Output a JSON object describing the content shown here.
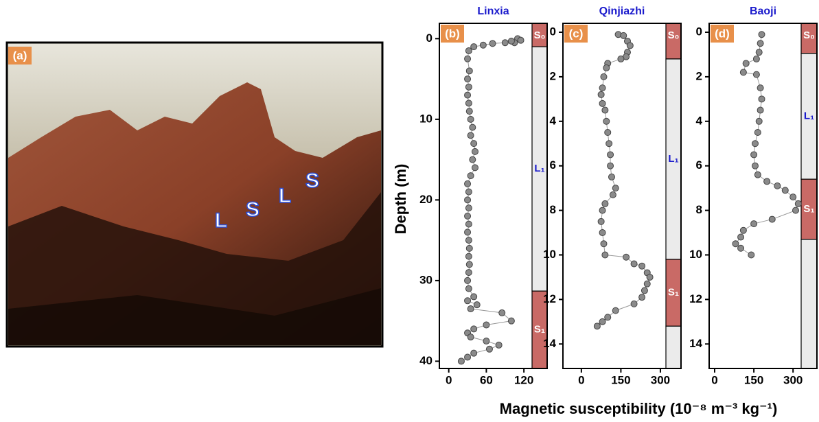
{
  "photo": {
    "label": "(a)",
    "annotations": [
      "L",
      "S",
      "L",
      "S"
    ]
  },
  "ylabel": "Depth (m)",
  "xlabel": "Magnetic susceptibility (10⁻⁸ m⁻³ kg⁻¹)",
  "chart_data": [
    {
      "type": "scatter",
      "title": "Linxia",
      "panel": "(b)",
      "color": "#8a8a8a",
      "line_color": "#999999",
      "xlim": [
        -15,
        133
      ],
      "xticks": [
        0,
        60,
        120
      ],
      "ylim": [
        40.9,
        -1.9
      ],
      "yticks": [
        0,
        10,
        20,
        30,
        40
      ],
      "series": [
        {
          "x": [
            110,
            115,
            105,
            100,
            90,
            70,
            55,
            40,
            32,
            30,
            33,
            30,
            32,
            30,
            32,
            33,
            35,
            38,
            35,
            40,
            42,
            38,
            42,
            35,
            30,
            32,
            30,
            32,
            30,
            32,
            30,
            32,
            33,
            32,
            33,
            32,
            30,
            32,
            40,
            30,
            45,
            35,
            85,
            100,
            60,
            40,
            30,
            35,
            60,
            80,
            65,
            40,
            30,
            20
          ],
          "y": [
            0,
            0.2,
            0.5,
            0.3,
            0.5,
            0.6,
            0.8,
            1,
            1.5,
            2.5,
            4,
            5,
            6,
            7,
            8,
            9,
            10,
            11,
            12,
            13,
            14,
            15,
            16,
            17,
            18,
            19,
            20,
            21,
            22,
            23,
            24,
            25,
            26,
            27,
            28,
            29,
            30,
            31,
            32,
            32.5,
            33,
            33.5,
            34,
            35,
            35.5,
            36,
            36.5,
            37,
            37.5,
            38,
            38.5,
            39,
            39.5,
            40
          ]
        }
      ],
      "units": [
        {
          "label": "S₀",
          "top": -1.9,
          "bottom": 1,
          "color": "#c96a66",
          "label_color": "#ffffff"
        },
        {
          "label": "L₁",
          "top": 1,
          "bottom": 31.3,
          "color": "#ebebeb",
          "label_color": "#1a1acc"
        },
        {
          "label": "S₁",
          "top": 31.3,
          "bottom": 40.9,
          "color": "#c96a66",
          "label_color": "#ffffff"
        }
      ]
    },
    {
      "type": "scatter",
      "title": "Qinjiazhi",
      "panel": "(c)",
      "color": "#8a8a8a",
      "line_color": "#999999",
      "xlim": [
        -70,
        321
      ],
      "xticks": [
        0,
        150,
        300
      ],
      "ylim": [
        15.1,
        -0.4
      ],
      "yticks": [
        0,
        2,
        4,
        6,
        8,
        10,
        12,
        14
      ],
      "series": [
        {
          "x": [
            140,
            160,
            175,
            185,
            175,
            170,
            150,
            100,
            95,
            85,
            80,
            75,
            80,
            90,
            95,
            100,
            105,
            110,
            110,
            115,
            130,
            120,
            90,
            80,
            75,
            80,
            85,
            90,
            170,
            200,
            230,
            250,
            260,
            250,
            240,
            230,
            200,
            130,
            100,
            80,
            60
          ],
          "y": [
            0.1,
            0.15,
            0.4,
            0.6,
            0.9,
            1.1,
            1.2,
            1.4,
            1.6,
            2,
            2.5,
            2.8,
            3.2,
            3.5,
            4,
            4.5,
            5,
            5.5,
            6,
            6.5,
            7,
            7.3,
            7.7,
            8,
            8.5,
            9,
            9.5,
            10,
            10.1,
            10.4,
            10.5,
            10.8,
            11,
            11.3,
            11.6,
            11.9,
            12.2,
            12.5,
            12.8,
            13,
            13.2
          ]
        }
      ],
      "units": [
        {
          "label": "S₀",
          "top": -0.4,
          "bottom": 1.2,
          "color": "#c96a66",
          "label_color": "#ffffff"
        },
        {
          "label": "L₁",
          "top": 1.2,
          "bottom": 10.2,
          "color": "#ebebeb",
          "label_color": "#1a1acc"
        },
        {
          "label": "S₁",
          "top": 10.2,
          "bottom": 13.2,
          "color": "#c96a66",
          "label_color": "#ffffff"
        },
        {
          "label": null,
          "top": 13.2,
          "bottom": 15.1,
          "color": "#ebebeb",
          "label_color": "#1a1acc"
        }
      ]
    },
    {
      "type": "scatter",
      "title": "Baoji",
      "panel": "(d)",
      "color": "#8a8a8a",
      "line_color": "#999999",
      "xlim": [
        -21,
        331
      ],
      "xticks": [
        0,
        150,
        300
      ],
      "ylim": [
        15.1,
        -0.4
      ],
      "yticks": [
        0,
        2,
        4,
        6,
        8,
        10,
        12,
        14
      ],
      "series": [
        {
          "x": [
            180,
            175,
            170,
            160,
            120,
            110,
            160,
            175,
            180,
            175,
            170,
            165,
            155,
            150,
            155,
            165,
            200,
            240,
            270,
            300,
            320,
            310,
            220,
            150,
            110,
            100,
            80,
            100,
            140
          ],
          "y": [
            0.1,
            0.5,
            0.9,
            1.2,
            1.4,
            1.8,
            1.9,
            2.5,
            3,
            3.5,
            4,
            4.5,
            5,
            5.5,
            6,
            6.4,
            6.7,
            6.9,
            7.1,
            7.4,
            7.7,
            8,
            8.4,
            8.6,
            8.9,
            9.2,
            9.5,
            9.7,
            10
          ]
        }
      ],
      "units": [
        {
          "label": "S₀",
          "top": -0.4,
          "bottom": 0.95,
          "color": "#c96a66",
          "label_color": "#ffffff"
        },
        {
          "label": "L₁",
          "top": 0.95,
          "bottom": 6.6,
          "color": "#ebebeb",
          "label_color": "#1a1acc"
        },
        {
          "label": "S₁",
          "top": 6.6,
          "bottom": 9.3,
          "color": "#c96a66",
          "label_color": "#ffffff"
        },
        {
          "label": null,
          "top": 9.3,
          "bottom": 15.1,
          "color": "#ebebeb",
          "label_color": "#1a1acc"
        }
      ]
    }
  ]
}
